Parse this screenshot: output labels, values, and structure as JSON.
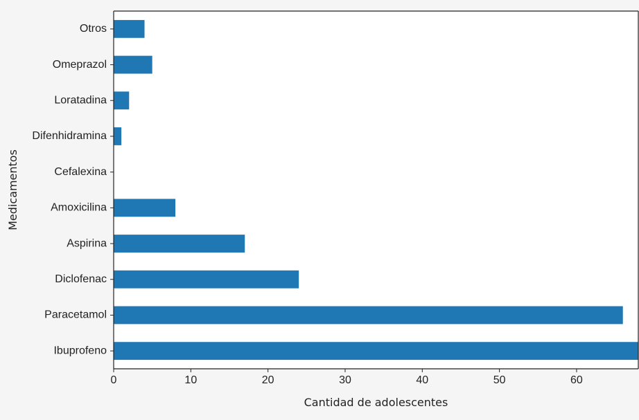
{
  "chart_data": {
    "type": "bar",
    "orientation": "horizontal",
    "categories": [
      "Ibuprofeno",
      "Paracetamol",
      "Diclofenac",
      "Aspirina",
      "Amoxicilina",
      "Cefalexina",
      "Difenhidramina",
      "Loratadina",
      "Omeprazol",
      "Otros"
    ],
    "values": [
      68,
      66,
      24,
      17,
      8,
      0,
      1,
      2,
      5,
      4
    ],
    "title": "",
    "xlabel": "Cantidad de adolescentes",
    "ylabel": "Medicamentos",
    "xlim": [
      0,
      68
    ],
    "xticks": [
      0,
      10,
      20,
      30,
      40,
      50,
      60
    ],
    "grid": false,
    "legend": "none"
  },
  "colors": {
    "bar": "#1f77b4",
    "background": "#f5f5f5",
    "plot_background": "#ffffff",
    "axis": "#222222"
  }
}
